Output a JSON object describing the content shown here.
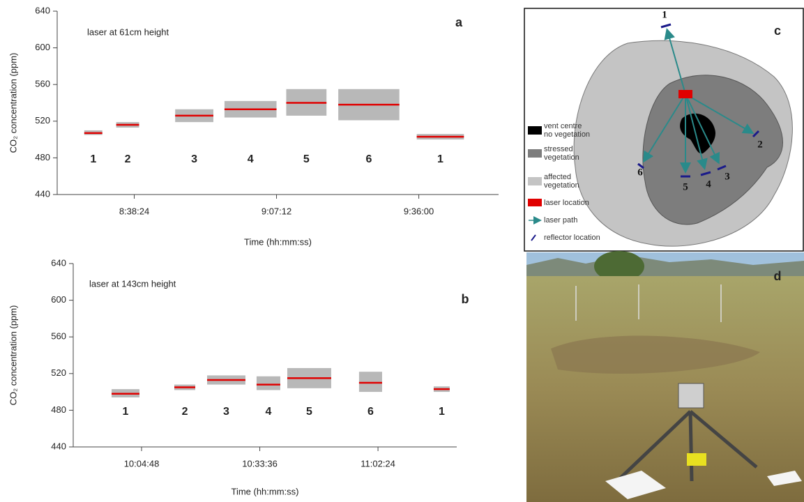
{
  "chart_data": [
    {
      "type": "range",
      "panel_label": "a",
      "annotation": "laser at 61cm height",
      "xlabel": "Time (hh:mm:ss)",
      "ylabel": "CO₂ concentration (ppm)",
      "xlim": [
        30168,
        35529
      ],
      "xticks": [
        {
          "value": 31104,
          "label": "8:38:24"
        },
        {
          "value": 32832,
          "label": "9:07:12"
        },
        {
          "value": 34560,
          "label": "9:36:00"
        }
      ],
      "ylim": [
        440,
        640
      ],
      "yticks": [
        440,
        480,
        520,
        560,
        600,
        640
      ],
      "mean_color": "#e00000",
      "box_color": "#b8b8b8",
      "segments": [
        {
          "label": "1",
          "x": [
            30497,
            30716
          ],
          "mean": 507,
          "low": 505,
          "high": 510
        },
        {
          "label": "2",
          "x": [
            30885,
            31163
          ],
          "mean": 516,
          "low": 513,
          "high": 519
        },
        {
          "label": "3",
          "x": [
            31601,
            32065
          ],
          "mean": 526,
          "low": 519,
          "high": 533
        },
        {
          "label": "4",
          "x": [
            32200,
            32832
          ],
          "mean": 533,
          "low": 524,
          "high": 542
        },
        {
          "label": "5",
          "x": [
            32950,
            33439
          ],
          "mean": 540,
          "low": 526,
          "high": 555
        },
        {
          "label": "6",
          "x": [
            33582,
            34324
          ],
          "mean": 538,
          "low": 521,
          "high": 555
        },
        {
          "label": "1",
          "x": [
            34535,
            35108
          ],
          "mean": 503,
          "low": 500,
          "high": 506
        }
      ]
    },
    {
      "type": "range",
      "panel_label": "b",
      "annotation": "laser at 143cm height",
      "xlabel": "Time (hh:mm:ss)",
      "ylabel": "CO₂ concentration (ppm)",
      "xlim": [
        35289,
        40895
      ],
      "xticks": [
        {
          "value": 36288,
          "label": "10:04:48"
        },
        {
          "value": 38016,
          "label": "10:33:36"
        },
        {
          "value": 39744,
          "label": "11:02:24"
        }
      ],
      "ylim": [
        440,
        640
      ],
      "yticks": [
        440,
        480,
        520,
        560,
        600,
        640
      ],
      "mean_color": "#e00000",
      "box_color": "#b8b8b8",
      "segments": [
        {
          "label": "1",
          "x": [
            35850,
            36257
          ],
          "mean": 498,
          "low": 494,
          "high": 503
        },
        {
          "label": "2",
          "x": [
            36767,
            37073
          ],
          "mean": 505,
          "low": 502,
          "high": 508
        },
        {
          "label": "3",
          "x": [
            37246,
            37806
          ],
          "mean": 513,
          "low": 508,
          "high": 518
        },
        {
          "label": "4",
          "x": [
            37969,
            38316
          ],
          "mean": 508,
          "low": 502,
          "high": 517
        },
        {
          "label": "5",
          "x": [
            38418,
            39060
          ],
          "mean": 515,
          "low": 504,
          "high": 526
        },
        {
          "label": "6",
          "x": [
            39467,
            39804
          ],
          "mean": 510,
          "low": 500,
          "high": 522
        },
        {
          "label": "1",
          "x": [
            40558,
            40792
          ],
          "mean": 503,
          "low": 500,
          "high": 506
        }
      ]
    }
  ],
  "diagram": {
    "panel_label": "c",
    "reflectors": [
      "1",
      "2",
      "3",
      "4",
      "5",
      "6"
    ],
    "legend": [
      {
        "lines": [
          "vent centre",
          "no vegetation"
        ]
      },
      {
        "lines": [
          "stressed",
          "vegetation"
        ]
      },
      {
        "lines": [
          "affected",
          "vegetation"
        ]
      },
      {
        "lines": [
          "laser location"
        ]
      },
      {
        "lines": [
          "laser path"
        ]
      },
      {
        "lines": [
          "reflector location"
        ]
      }
    ]
  },
  "photo": {
    "panel_label": "d"
  }
}
